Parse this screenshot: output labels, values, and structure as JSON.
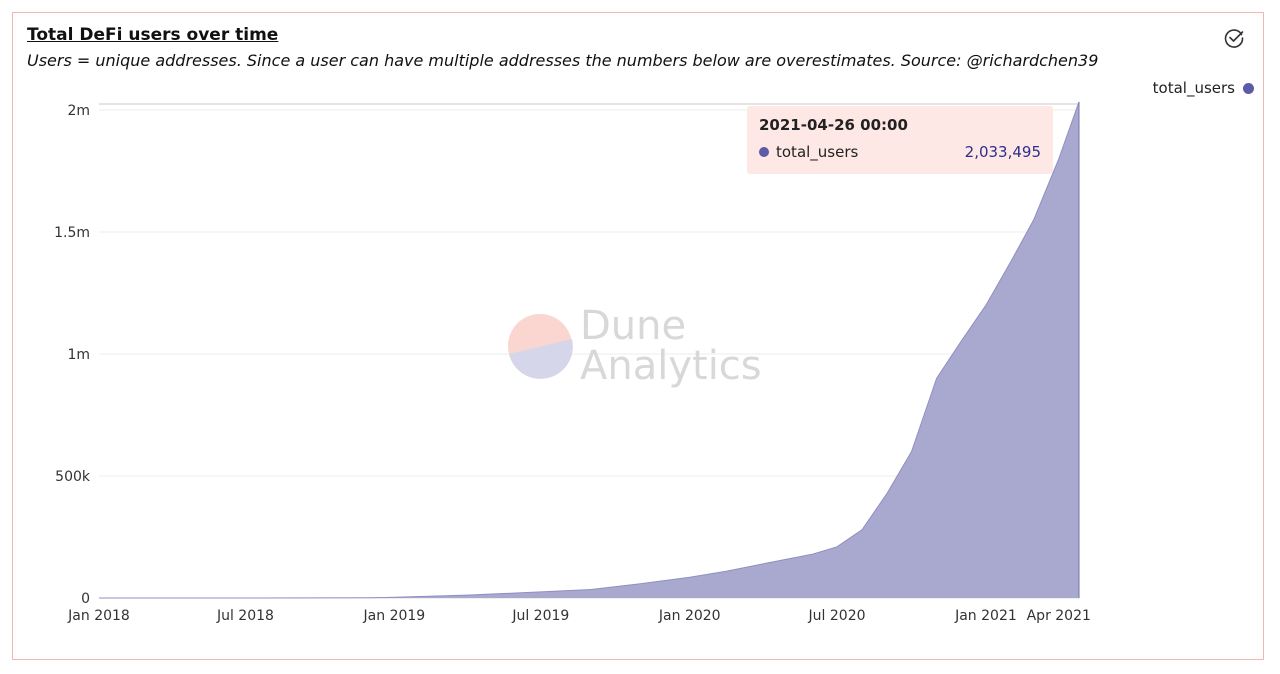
{
  "header": {
    "title": "Total DeFi users over time",
    "subtitle": "Users = unique addresses. Since a user can have multiple addresses the numbers below are overestimates. Source: @richardchen39"
  },
  "icons": {
    "toggle": "check-circle-icon"
  },
  "legend": {
    "label": "total_users",
    "color": "#5b5ba6"
  },
  "watermark": {
    "line1": "Dune",
    "line2": "Analytics"
  },
  "tooltip": {
    "date": "2021-04-26 00:00",
    "series": "total_users",
    "value": "2,033,495"
  },
  "colors": {
    "area_fill": "#a9a9cf",
    "series": "#5b5ba6",
    "tooltip_bg": "#fde8e5",
    "border": "#f2b8b0"
  },
  "chart_data": {
    "type": "area",
    "title": "Total DeFi users over time",
    "xlabel": "",
    "ylabel": "",
    "ylim": [
      0,
      2000000
    ],
    "grid": true,
    "legend_position": "top-right",
    "y_ticks": [
      {
        "value": 0,
        "label": "0"
      },
      {
        "value": 500000,
        "label": "500k"
      },
      {
        "value": 1000000,
        "label": "1m"
      },
      {
        "value": 1500000,
        "label": "1.5m"
      },
      {
        "value": 2000000,
        "label": "2m"
      }
    ],
    "x_ticks": [
      {
        "date": "2018-01-01",
        "label": "Jan 2018"
      },
      {
        "date": "2018-07-01",
        "label": "Jul 2018"
      },
      {
        "date": "2019-01-01",
        "label": "Jan 2019"
      },
      {
        "date": "2019-07-01",
        "label": "Jul 2019"
      },
      {
        "date": "2020-01-01",
        "label": "Jan 2020"
      },
      {
        "date": "2020-07-01",
        "label": "Jul 2020"
      },
      {
        "date": "2021-01-01",
        "label": "Jan 2021"
      },
      {
        "date": "2021-04-01",
        "label": "Apr 2021"
      }
    ],
    "xlim": [
      "2018-01-01",
      "2021-04-26"
    ],
    "series": [
      {
        "name": "total_users",
        "color": "#5b5ba6",
        "points": [
          [
            "2018-01-01",
            0
          ],
          [
            "2018-07-01",
            0
          ],
          [
            "2018-12-01",
            1000
          ],
          [
            "2019-01-01",
            3000
          ],
          [
            "2019-04-01",
            12000
          ],
          [
            "2019-07-01",
            25000
          ],
          [
            "2019-09-01",
            35000
          ],
          [
            "2019-11-01",
            58000
          ],
          [
            "2020-01-01",
            85000
          ],
          [
            "2020-02-15",
            110000
          ],
          [
            "2020-04-01",
            140000
          ],
          [
            "2020-06-01",
            180000
          ],
          [
            "2020-07-01",
            210000
          ],
          [
            "2020-08-01",
            280000
          ],
          [
            "2020-09-01",
            430000
          ],
          [
            "2020-10-01",
            600000
          ],
          [
            "2020-11-01",
            900000
          ],
          [
            "2020-12-01",
            1050000
          ],
          [
            "2021-01-01",
            1200000
          ],
          [
            "2021-02-01",
            1380000
          ],
          [
            "2021-03-01",
            1550000
          ],
          [
            "2021-04-01",
            1800000
          ],
          [
            "2021-04-26",
            2033495
          ]
        ]
      }
    ]
  }
}
